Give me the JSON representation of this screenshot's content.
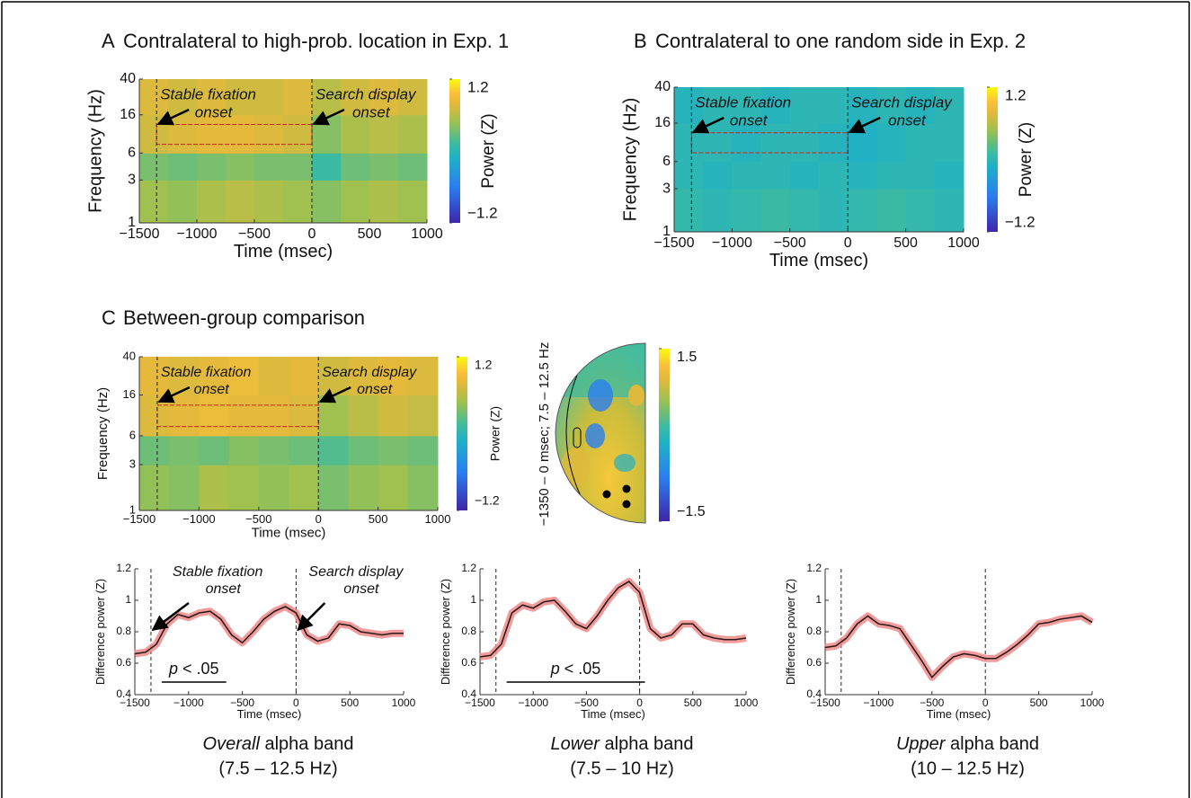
{
  "chart_data": [
    {
      "type": "heatmap",
      "title": [
        "A",
        "Contralateral to high-prob. location in Exp. 1"
      ],
      "xlabel": "Time (msec)",
      "ylabel": "Frequency (Hz)",
      "clabel": "Power (Z)",
      "xbins": [
        -1500,
        -1250,
        -1000,
        -750,
        -500,
        -250,
        0,
        250,
        500,
        750,
        1000
      ],
      "ybins": [
        1,
        3,
        6,
        16,
        40
      ],
      "values": [
        [
          0.5,
          0.45,
          0.55,
          0.6,
          0.55,
          0.5,
          0.4,
          0.5,
          0.55,
          0.5
        ],
        [
          0.35,
          0.3,
          0.35,
          0.4,
          0.35,
          0.35,
          0.1,
          0.3,
          0.35,
          0.3
        ],
        [
          0.7,
          0.75,
          0.8,
          0.8,
          0.75,
          0.7,
          0.4,
          0.55,
          0.6,
          0.55
        ],
        [
          0.75,
          0.7,
          0.75,
          0.7,
          0.7,
          0.75,
          0.6,
          0.7,
          0.75,
          0.7
        ]
      ],
      "log_y": true,
      "xlim": [
        -1500,
        1000
      ],
      "ylim": [
        1,
        40
      ],
      "xticks": [
        {
          "value": -1500,
          "label": "−1500"
        },
        {
          "value": -1000,
          "label": "−1000"
        },
        {
          "value": -500,
          "label": "−500"
        },
        0,
        500,
        1000
      ],
      "yticks": [
        1,
        3,
        6,
        16,
        40
      ],
      "clim": [
        -1.2,
        1.2
      ],
      "cticks": [
        1.2,
        {
          "value": -1.2,
          "label": "−1.2"
        }
      ],
      "markers": [
        -1350,
        0
      ],
      "highlight": {
        "x": [
          -1350,
          0
        ],
        "y": [
          7.5,
          12.5
        ]
      },
      "annotations": [
        [
          "Stable fixation",
          "onset"
        ],
        [
          "Search display",
          "onset"
        ]
      ]
    },
    {
      "type": "heatmap",
      "title": [
        "B",
        "Contralateral to one random side in Exp. 2"
      ],
      "xlabel": "Time (msec)",
      "ylabel": "Frequency (Hz)",
      "clabel": "Power (Z)",
      "xbins": [
        -1500,
        -1250,
        -1000,
        -750,
        -500,
        -250,
        0,
        250,
        500,
        750,
        1000
      ],
      "ybins": [
        1,
        3,
        6,
        16,
        40
      ],
      "values": [
        [
          0.05,
          0.0,
          0.05,
          0.1,
          0.05,
          0.0,
          0.05,
          0.1,
          0.05,
          0.0
        ],
        [
          0.0,
          -0.05,
          0.0,
          0.0,
          -0.05,
          0.0,
          -0.05,
          0.0,
          0.0,
          -0.05
        ],
        [
          0.0,
          0.0,
          -0.05,
          0.0,
          0.0,
          -0.05,
          -0.1,
          -0.05,
          0.0,
          0.0
        ],
        [
          -0.05,
          0.0,
          0.0,
          -0.05,
          0.0,
          0.0,
          -0.05,
          0.0,
          -0.05,
          0.0
        ]
      ],
      "log_y": true,
      "xlim": [
        -1500,
        1000
      ],
      "ylim": [
        1,
        40
      ],
      "xticks": [
        {
          "value": -1500,
          "label": "−1500"
        },
        {
          "value": -1000,
          "label": "−1000"
        },
        {
          "value": -500,
          "label": "−500"
        },
        0,
        500,
        1000
      ],
      "yticks": [
        1,
        3,
        6,
        16,
        40
      ],
      "clim": [
        -1.2,
        1.2
      ],
      "cticks": [
        1.2,
        {
          "value": -1.2,
          "label": "−1.2"
        }
      ],
      "markers": [
        -1350,
        0
      ],
      "highlight": {
        "x": [
          -1350,
          0
        ],
        "y": [
          7.5,
          12.5
        ]
      },
      "annotations": [
        [
          "Stable fixation",
          "onset"
        ],
        [
          "Search display",
          "onset"
        ]
      ]
    },
    {
      "type": "heatmap",
      "title": [
        "C",
        "Between-group comparison"
      ],
      "xlabel": "Time (msec)",
      "ylabel": "Frequency (Hz)",
      "clabel": "Power (Z)",
      "xbins": [
        -1500,
        -1250,
        -1000,
        -750,
        -500,
        -250,
        0,
        250,
        500,
        750,
        1000
      ],
      "ybins": [
        1,
        3,
        6,
        16,
        40
      ],
      "values": [
        [
          0.45,
          0.4,
          0.55,
          0.5,
          0.45,
          0.5,
          0.35,
          0.45,
          0.5,
          0.4
        ],
        [
          0.3,
          0.35,
          0.3,
          0.4,
          0.35,
          0.3,
          0.2,
          0.3,
          0.35,
          0.3
        ],
        [
          0.75,
          0.8,
          0.85,
          0.8,
          0.8,
          0.75,
          0.5,
          0.6,
          0.7,
          0.65
        ],
        [
          0.8,
          0.75,
          0.8,
          0.85,
          0.75,
          0.8,
          0.7,
          0.75,
          0.8,
          0.75
        ]
      ],
      "log_y": true,
      "xlim": [
        -1500,
        1000
      ],
      "ylim": [
        1,
        40
      ],
      "xticks": [
        {
          "value": -1500,
          "label": "−1500"
        },
        {
          "value": -1000,
          "label": "−1000"
        },
        {
          "value": -500,
          "label": "−500"
        },
        0,
        500,
        1000
      ],
      "yticks": [
        1,
        3,
        6,
        16,
        40
      ],
      "clim": [
        -1.2,
        1.2
      ],
      "cticks": [
        1.2,
        {
          "value": -1.2,
          "label": "−1.2"
        }
      ],
      "markers": [
        -1350,
        0
      ],
      "highlight": {
        "x": [
          -1350,
          0
        ],
        "y": [
          7.5,
          12.5
        ]
      },
      "annotations": [
        [
          "Stable fixation",
          "onset"
        ],
        [
          "Search display",
          "onset"
        ]
      ]
    },
    {
      "type": "topomap",
      "label": "−1350 – 0 msec; 7.5 – 12.5 Hz",
      "clim": [
        -1.5,
        1.5
      ],
      "cticks": [
        1.5,
        {
          "value": -1.5,
          "label": "−1.5"
        }
      ]
    },
    {
      "type": "line",
      "xlabel": "Time (msec)",
      "ylabel": "Difference power (Z)",
      "x": [
        -1500,
        -1400,
        -1300,
        -1200,
        -1100,
        -1000,
        -900,
        -800,
        -700,
        -600,
        -500,
        -400,
        -300,
        -200,
        -100,
        0,
        100,
        200,
        300,
        400,
        500,
        600,
        700,
        800,
        900,
        1000
      ],
      "values": [
        0.66,
        0.67,
        0.72,
        0.85,
        0.91,
        0.89,
        0.92,
        0.93,
        0.88,
        0.78,
        0.73,
        0.8,
        0.88,
        0.93,
        0.96,
        0.92,
        0.78,
        0.74,
        0.76,
        0.85,
        0.84,
        0.8,
        0.79,
        0.78,
        0.79,
        0.79
      ],
      "color": "#2b1a1a",
      "band_color": "#f08a8a",
      "xlim": [
        -1500,
        1000
      ],
      "ylim": [
        0.4,
        1.2
      ],
      "xticks": [
        {
          "value": -1500,
          "label": "−1500"
        },
        {
          "value": -1000,
          "label": "−1000"
        },
        {
          "value": -500,
          "label": "−500"
        },
        0,
        500,
        1000
      ],
      "yticks": [
        0.4,
        0.6,
        0.8,
        1,
        1.2
      ],
      "markers": [
        -1350,
        0
      ],
      "annotations": [
        [
          "Stable fixation",
          "onset"
        ],
        [
          "Search display",
          "onset"
        ]
      ],
      "sig": {
        "x": [
          -1250,
          -650
        ],
        "y": 0.48,
        "label": [
          "p",
          " < .05"
        ]
      },
      "caption": [
        [
          "Overall",
          " alpha band"
        ],
        "(7.5 – 12.5 Hz)"
      ]
    },
    {
      "type": "line",
      "xlabel": "Time (msec)",
      "ylabel": "Difference power (Z)",
      "x": [
        -1500,
        -1400,
        -1300,
        -1200,
        -1100,
        -1000,
        -900,
        -800,
        -700,
        -600,
        -500,
        -400,
        -300,
        -200,
        -100,
        0,
        100,
        200,
        300,
        400,
        500,
        600,
        700,
        800,
        900,
        1000
      ],
      "values": [
        0.64,
        0.65,
        0.72,
        0.92,
        0.97,
        0.95,
        0.99,
        1.0,
        0.93,
        0.85,
        0.82,
        0.9,
        1.0,
        1.08,
        1.12,
        1.05,
        0.82,
        0.76,
        0.78,
        0.85,
        0.85,
        0.78,
        0.76,
        0.75,
        0.75,
        0.76
      ],
      "color": "#2b1a1a",
      "band_color": "#f08a8a",
      "xlim": [
        -1500,
        1000
      ],
      "ylim": [
        0.4,
        1.2
      ],
      "xticks": [
        {
          "value": -1500,
          "label": "−1500"
        },
        {
          "value": -1000,
          "label": "−1000"
        },
        {
          "value": -500,
          "label": "−500"
        },
        0,
        500,
        1000
      ],
      "yticks": [
        0.4,
        0.6,
        0.8,
        1,
        1.2
      ],
      "markers": [
        -1350,
        0
      ],
      "sig": {
        "x": [
          -1250,
          50
        ],
        "y": 0.48,
        "label": [
          "p",
          " < .05"
        ]
      },
      "caption": [
        [
          "Lower",
          " alpha band"
        ],
        "(7.5 – 10 Hz)"
      ]
    },
    {
      "type": "line",
      "xlabel": "Time (msec)",
      "ylabel": "Difference power (Z)",
      "x": [
        -1500,
        -1400,
        -1300,
        -1200,
        -1100,
        -1000,
        -900,
        -800,
        -700,
        -600,
        -500,
        -400,
        -300,
        -200,
        -100,
        0,
        100,
        200,
        300,
        400,
        500,
        600,
        700,
        800,
        900,
        1000
      ],
      "values": [
        0.7,
        0.71,
        0.76,
        0.85,
        0.9,
        0.85,
        0.84,
        0.82,
        0.72,
        0.62,
        0.51,
        0.58,
        0.64,
        0.66,
        0.65,
        0.63,
        0.63,
        0.67,
        0.72,
        0.78,
        0.85,
        0.86,
        0.88,
        0.89,
        0.9,
        0.86
      ],
      "color": "#2b1a1a",
      "band_color": "#f08a8a",
      "xlim": [
        -1500,
        1000
      ],
      "ylim": [
        0.4,
        1.2
      ],
      "xticks": [
        {
          "value": -1500,
          "label": "−1500"
        },
        {
          "value": -1000,
          "label": "−1000"
        },
        {
          "value": -500,
          "label": "−500"
        },
        0,
        500,
        1000
      ],
      "yticks": [
        0.4,
        0.6,
        0.8,
        1,
        1.2
      ],
      "markers": [
        -1350,
        0
      ],
      "caption": [
        [
          "Upper",
          " alpha band"
        ],
        "(10 – 12.5 Hz)"
      ]
    }
  ]
}
